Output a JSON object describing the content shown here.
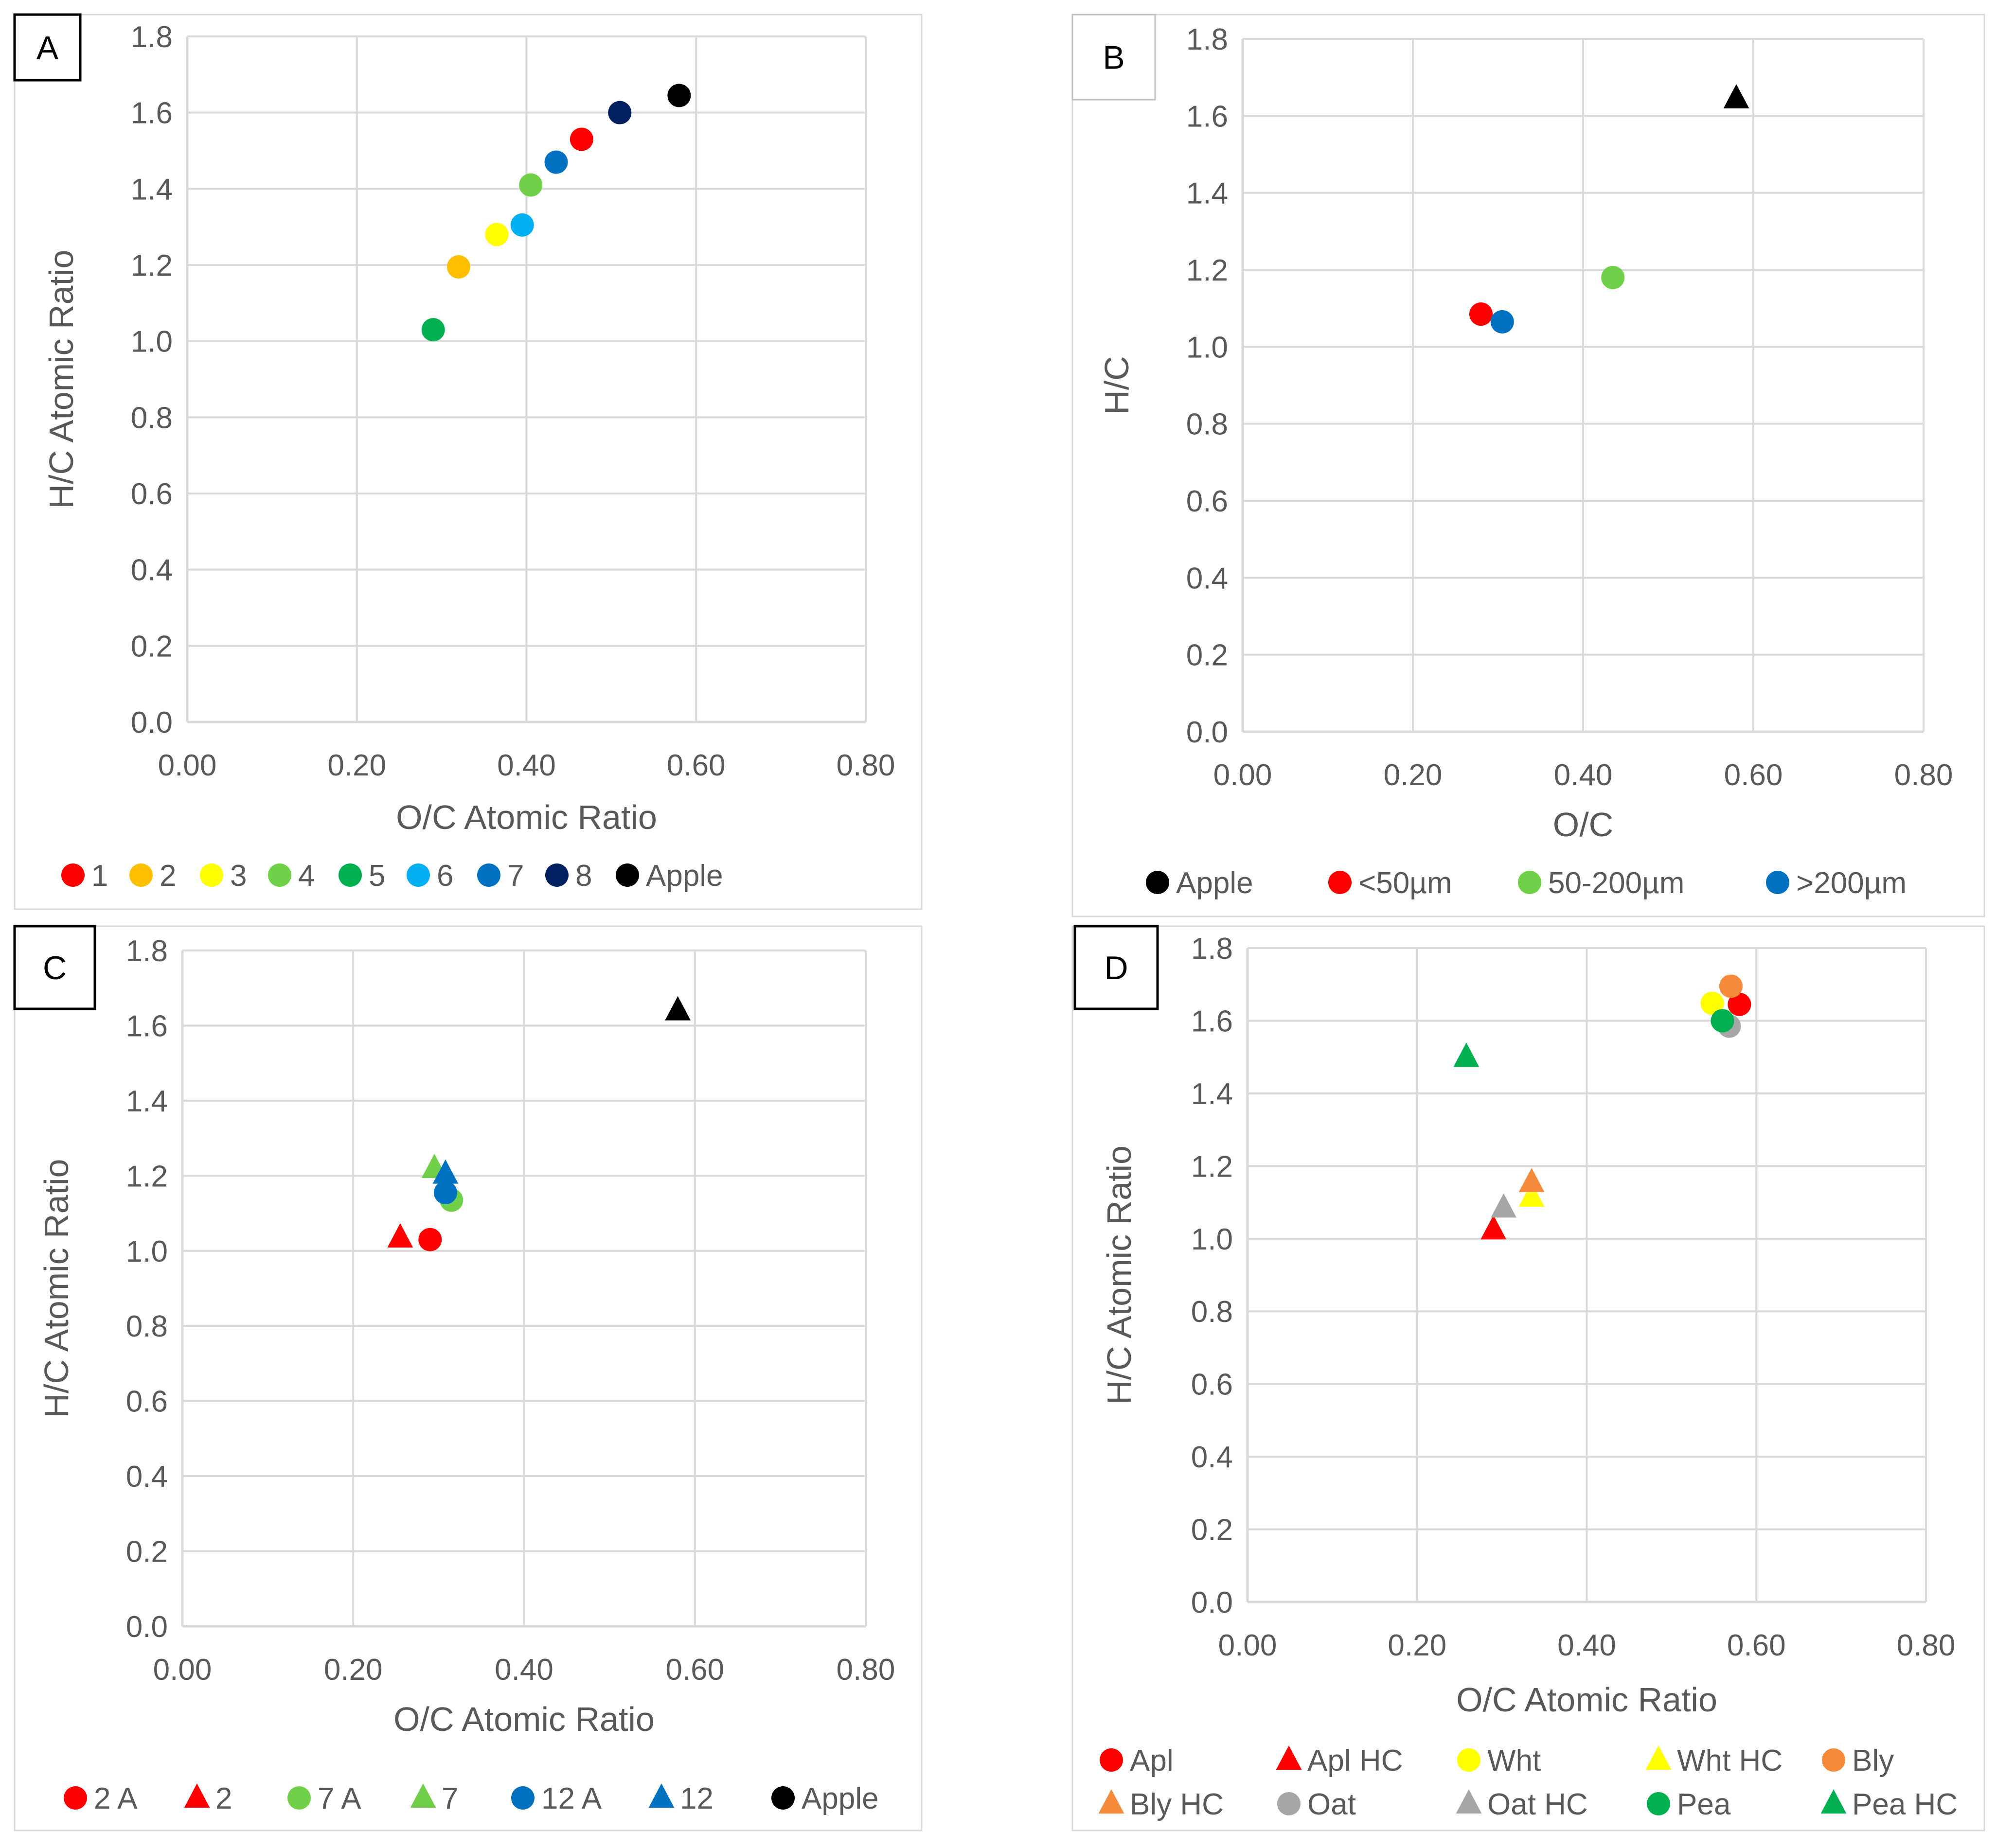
{
  "colors": {
    "red": "#FF0000",
    "orange": "#FFC000",
    "yellow": "#FFFF00",
    "lightgreen": "#70D04A",
    "green": "#00B050",
    "lightblue": "#00B0F0",
    "blue": "#0070C0",
    "navy": "#002060",
    "black": "#000000",
    "barley": "#F58A3A",
    "gray": "#A6A6A6",
    "text": "#595959",
    "grid": "#D9D9D9",
    "frame": "#D9D9D9"
  },
  "chart_data": [
    {
      "id": "A",
      "panel_label": "A",
      "type": "scatter",
      "xlabel": "O/C Atomic Ratio",
      "ylabel": "H/C Atomic Ratio",
      "xlim": [
        0,
        0.8
      ],
      "ylim": [
        0,
        1.8
      ],
      "x_step": 0.2,
      "y_step": 0.2,
      "grid": true,
      "legend": "bottom",
      "x_ticks": [
        "0.00",
        "0.20",
        "0.40",
        "0.60",
        "0.80"
      ],
      "y_ticks": [
        "0.0",
        "0.2",
        "0.4",
        "0.6",
        "0.8",
        "1.0",
        "1.2",
        "1.4",
        "1.6",
        "1.8"
      ],
      "series": [
        {
          "name": "1",
          "color": "red",
          "marker": "circle",
          "points": [
            [
              0.465,
              1.53
            ]
          ]
        },
        {
          "name": "2",
          "color": "orange",
          "marker": "circle",
          "points": [
            [
              0.32,
              1.195
            ]
          ]
        },
        {
          "name": "3",
          "color": "yellow",
          "marker": "circle",
          "points": [
            [
              0.365,
              1.28
            ]
          ]
        },
        {
          "name": "4",
          "color": "lightgreen",
          "marker": "circle",
          "points": [
            [
              0.405,
              1.41
            ]
          ]
        },
        {
          "name": "5",
          "color": "green",
          "marker": "circle",
          "points": [
            [
              0.29,
              1.03
            ]
          ]
        },
        {
          "name": "6",
          "color": "lightblue",
          "marker": "circle",
          "points": [
            [
              0.395,
              1.305
            ]
          ]
        },
        {
          "name": "7",
          "color": "blue",
          "marker": "circle",
          "points": [
            [
              0.435,
              1.47
            ]
          ]
        },
        {
          "name": "8",
          "color": "navy",
          "marker": "circle",
          "points": [
            [
              0.51,
              1.6
            ]
          ]
        },
        {
          "name": "Apple",
          "color": "black",
          "marker": "circle",
          "points": [
            [
              0.58,
              1.645
            ]
          ]
        }
      ]
    },
    {
      "id": "B",
      "panel_label": "B",
      "type": "scatter",
      "xlabel": "O/C",
      "ylabel": "H/C",
      "xlim": [
        0,
        0.8
      ],
      "ylim": [
        0,
        1.8
      ],
      "x_step": 0.2,
      "y_step": 0.2,
      "grid": true,
      "legend": "bottom",
      "x_ticks": [
        "0.00",
        "0.20",
        "0.40",
        "0.60",
        "0.80"
      ],
      "y_ticks": [
        "0.0",
        "0.2",
        "0.4",
        "0.6",
        "0.8",
        "1.0",
        "1.2",
        "1.4",
        "1.6",
        "1.8"
      ],
      "series": [
        {
          "name": "Apple",
          "color": "black",
          "marker": "triangle",
          "legend_marker": "circle",
          "points": [
            [
              0.58,
              1.645
            ]
          ]
        },
        {
          "name": "<50µm",
          "color": "red",
          "marker": "circle",
          "points": [
            [
              0.28,
              1.085
            ]
          ]
        },
        {
          "name": "50-200µm",
          "color": "lightgreen",
          "marker": "circle",
          "points": [
            [
              0.435,
              1.18
            ]
          ]
        },
        {
          "name": ">200µm",
          "color": "blue",
          "marker": "circle",
          "points": [
            [
              0.305,
              1.065
            ]
          ]
        }
      ]
    },
    {
      "id": "C",
      "panel_label": "C",
      "type": "scatter",
      "xlabel": "O/C Atomic Ratio",
      "ylabel": "H/C Atomic Ratio",
      "xlim": [
        0,
        0.8
      ],
      "ylim": [
        0,
        1.8
      ],
      "x_step": 0.2,
      "y_step": 0.2,
      "grid": true,
      "legend": "bottom",
      "x_ticks": [
        "0.00",
        "0.20",
        "0.40",
        "0.60",
        "0.80"
      ],
      "y_ticks": [
        "0.0",
        "0.2",
        "0.4",
        "0.6",
        "0.8",
        "1.0",
        "1.2",
        "1.4",
        "1.6",
        "1.8"
      ],
      "series": [
        {
          "name": "2 A",
          "color": "red",
          "marker": "circle",
          "points": [
            [
              0.29,
              1.03
            ]
          ]
        },
        {
          "name": "2",
          "color": "red",
          "marker": "triangle",
          "points": [
            [
              0.255,
              1.035
            ]
          ]
        },
        {
          "name": "7 A",
          "color": "lightgreen",
          "marker": "circle",
          "points": [
            [
              0.315,
              1.135
            ]
          ]
        },
        {
          "name": "7",
          "color": "lightgreen",
          "marker": "triangle",
          "points": [
            [
              0.295,
              1.22
            ]
          ]
        },
        {
          "name": "12 A",
          "color": "blue",
          "marker": "circle",
          "points": [
            [
              0.308,
              1.155
            ]
          ]
        },
        {
          "name": "12",
          "color": "blue",
          "marker": "triangle",
          "points": [
            [
              0.308,
              1.205
            ]
          ]
        },
        {
          "name": "Apple",
          "color": "black",
          "marker": "triangle",
          "legend_marker": "circle",
          "points": [
            [
              0.58,
              1.64
            ]
          ]
        }
      ]
    },
    {
      "id": "D",
      "panel_label": "D",
      "type": "scatter",
      "xlabel": "O/C Atomic Ratio",
      "ylabel": "H/C Atomic Ratio",
      "xlim": [
        0,
        0.8
      ],
      "ylim": [
        0,
        1.8
      ],
      "x_step": 0.2,
      "y_step": 0.2,
      "grid": true,
      "legend": "bottom",
      "x_ticks": [
        "0.00",
        "0.20",
        "0.40",
        "0.60",
        "0.80"
      ],
      "y_ticks": [
        "0.0",
        "0.2",
        "0.4",
        "0.6",
        "0.8",
        "1.0",
        "1.2",
        "1.4",
        "1.6",
        "1.8"
      ],
      "series": [
        {
          "name": "Apl",
          "color": "red",
          "marker": "circle",
          "points": [
            [
              0.58,
              1.645
            ]
          ]
        },
        {
          "name": "Apl HC",
          "color": "red",
          "marker": "triangle",
          "points": [
            [
              0.29,
              1.025
            ]
          ]
        },
        {
          "name": "Wht",
          "color": "yellow",
          "marker": "circle",
          "points": [
            [
              0.548,
              1.648
            ]
          ]
        },
        {
          "name": "Wht HC",
          "color": "yellow",
          "marker": "triangle",
          "points": [
            [
              0.335,
              1.115
            ]
          ]
        },
        {
          "name": "Bly",
          "color": "barley",
          "marker": "circle",
          "points": [
            [
              0.57,
              1.695
            ]
          ]
        },
        {
          "name": "Bly HC",
          "color": "barley",
          "marker": "triangle",
          "points": [
            [
              0.335,
              1.155
            ]
          ]
        },
        {
          "name": "Oat",
          "color": "gray",
          "marker": "circle",
          "points": [
            [
              0.568,
              1.585
            ]
          ]
        },
        {
          "name": "Oat HC",
          "color": "gray",
          "marker": "triangle",
          "points": [
            [
              0.302,
              1.085
            ]
          ]
        },
        {
          "name": "Pea",
          "color": "green",
          "marker": "circle",
          "points": [
            [
              0.56,
              1.6
            ]
          ]
        },
        {
          "name": "Pea HC",
          "color": "green",
          "marker": "triangle",
          "points": [
            [
              0.258,
              1.5
            ]
          ]
        }
      ]
    }
  ]
}
